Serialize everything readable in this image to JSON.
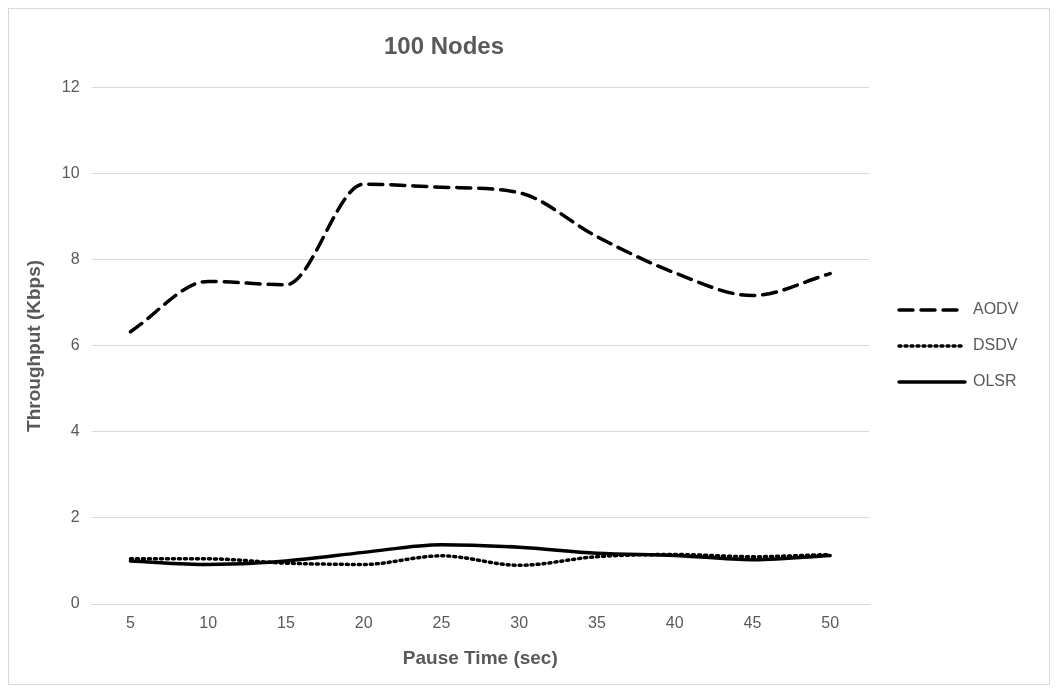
{
  "chart_data": {
    "type": "line",
    "title": "100 Nodes",
    "xlabel": "Pause Time (sec)",
    "ylabel": "Throughput (Kbps)",
    "categories": [
      "5",
      "10",
      "15",
      "20",
      "25",
      "30",
      "35",
      "40",
      "45",
      "50"
    ],
    "series": [
      {
        "name": "AODV",
        "color": "#000000",
        "line_style": "dashed",
        "values": [
          6.33,
          7.5,
          7.42,
          9.76,
          9.69,
          9.56,
          8.54,
          7.7,
          7.17,
          7.68
        ]
      },
      {
        "name": "DSDV",
        "color": "#000000",
        "line_style": "dotted",
        "values": [
          1.05,
          1.05,
          0.95,
          0.92,
          1.12,
          0.9,
          1.1,
          1.15,
          1.1,
          1.15
        ]
      },
      {
        "name": "OLSR",
        "color": "#000000",
        "line_style": "solid",
        "values": [
          1.0,
          0.92,
          1.0,
          1.2,
          1.38,
          1.32,
          1.18,
          1.13,
          1.03,
          1.13
        ]
      }
    ],
    "ylim": [
      0,
      12
    ],
    "yticks": [
      0,
      2,
      4,
      6,
      8,
      10,
      12
    ],
    "grid": "y",
    "legend": "right",
    "marker": "none"
  }
}
